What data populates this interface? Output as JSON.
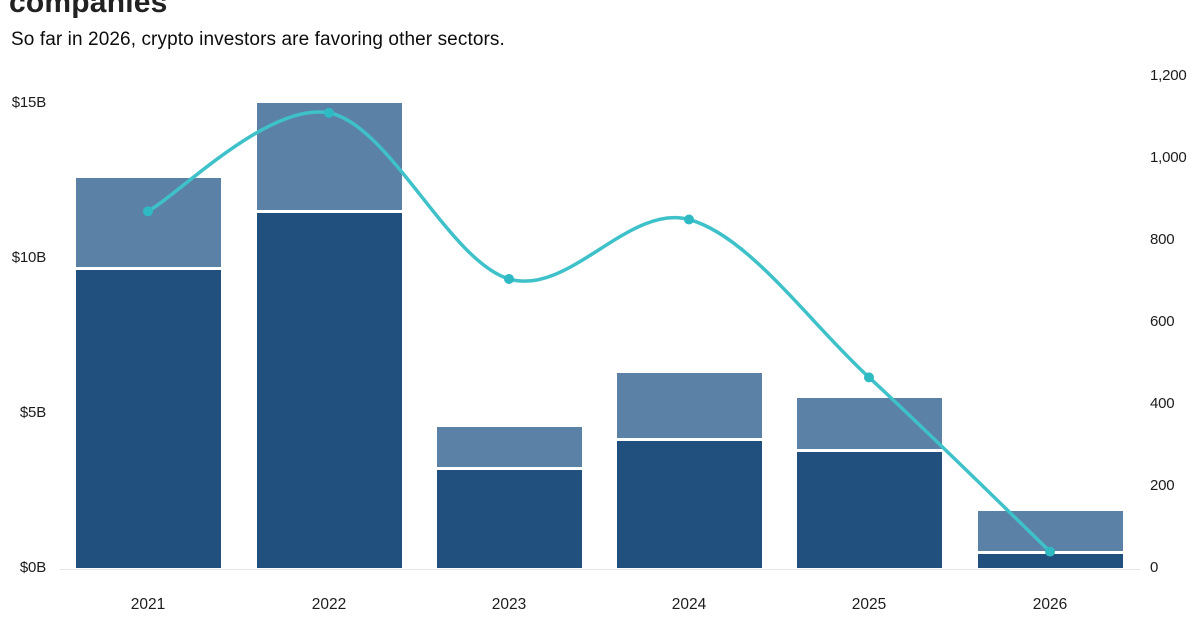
{
  "header": {
    "title": "companies",
    "subtitle": "So far in 2026, crypto investors are favoring other sectors."
  },
  "chart_data": {
    "type": "combo-stacked-bar-line",
    "categories": [
      "2021",
      "2022",
      "2023",
      "2024",
      "2025",
      "2026"
    ],
    "series": [
      {
        "name": "deal-value-primary",
        "type": "bar",
        "stack": "deal-value",
        "axis": "left",
        "unit": "billions USD",
        "color": "#21507e",
        "values": [
          9.6,
          11.45,
          3.15,
          4.1,
          3.75,
          0.45
        ]
      },
      {
        "name": "deal-value-secondary",
        "type": "bar",
        "stack": "deal-value",
        "axis": "left",
        "unit": "billions USD",
        "color": "#5b82a6",
        "values": [
          2.9,
          3.45,
          1.3,
          2.1,
          1.65,
          1.3
        ]
      },
      {
        "name": "deal-count",
        "type": "line",
        "axis": "right",
        "color": "#3ec1c9",
        "dot_color": "#2eb9c3",
        "values": [
          870,
          1110,
          705,
          850,
          465,
          40
        ]
      }
    ],
    "left_axis": {
      "ticks": [
        "$0B",
        "$5B",
        "$10B",
        "$15B"
      ],
      "tick_values": [
        0,
        5,
        10,
        15
      ],
      "range": [
        0,
        16
      ]
    },
    "right_axis": {
      "ticks": [
        "0",
        "200",
        "400",
        "600",
        "800",
        "1,000",
        "1,200"
      ],
      "tick_values": [
        0,
        200,
        400,
        600,
        800,
        1000,
        1200
      ],
      "range": [
        0,
        1250
      ]
    },
    "grid": "off",
    "legend": "cut off at bottom edge",
    "title": "companies",
    "subtitle": "So far in 2026, crypto investors are favoring other sectors."
  },
  "colors": {
    "bar_dark": "#21507e",
    "bar_light": "#5b82a6",
    "line_teal": "#3ec1c9",
    "dot_teal": "#2eb9c3",
    "text": "#1c1c1c",
    "background": "#ffffff"
  }
}
